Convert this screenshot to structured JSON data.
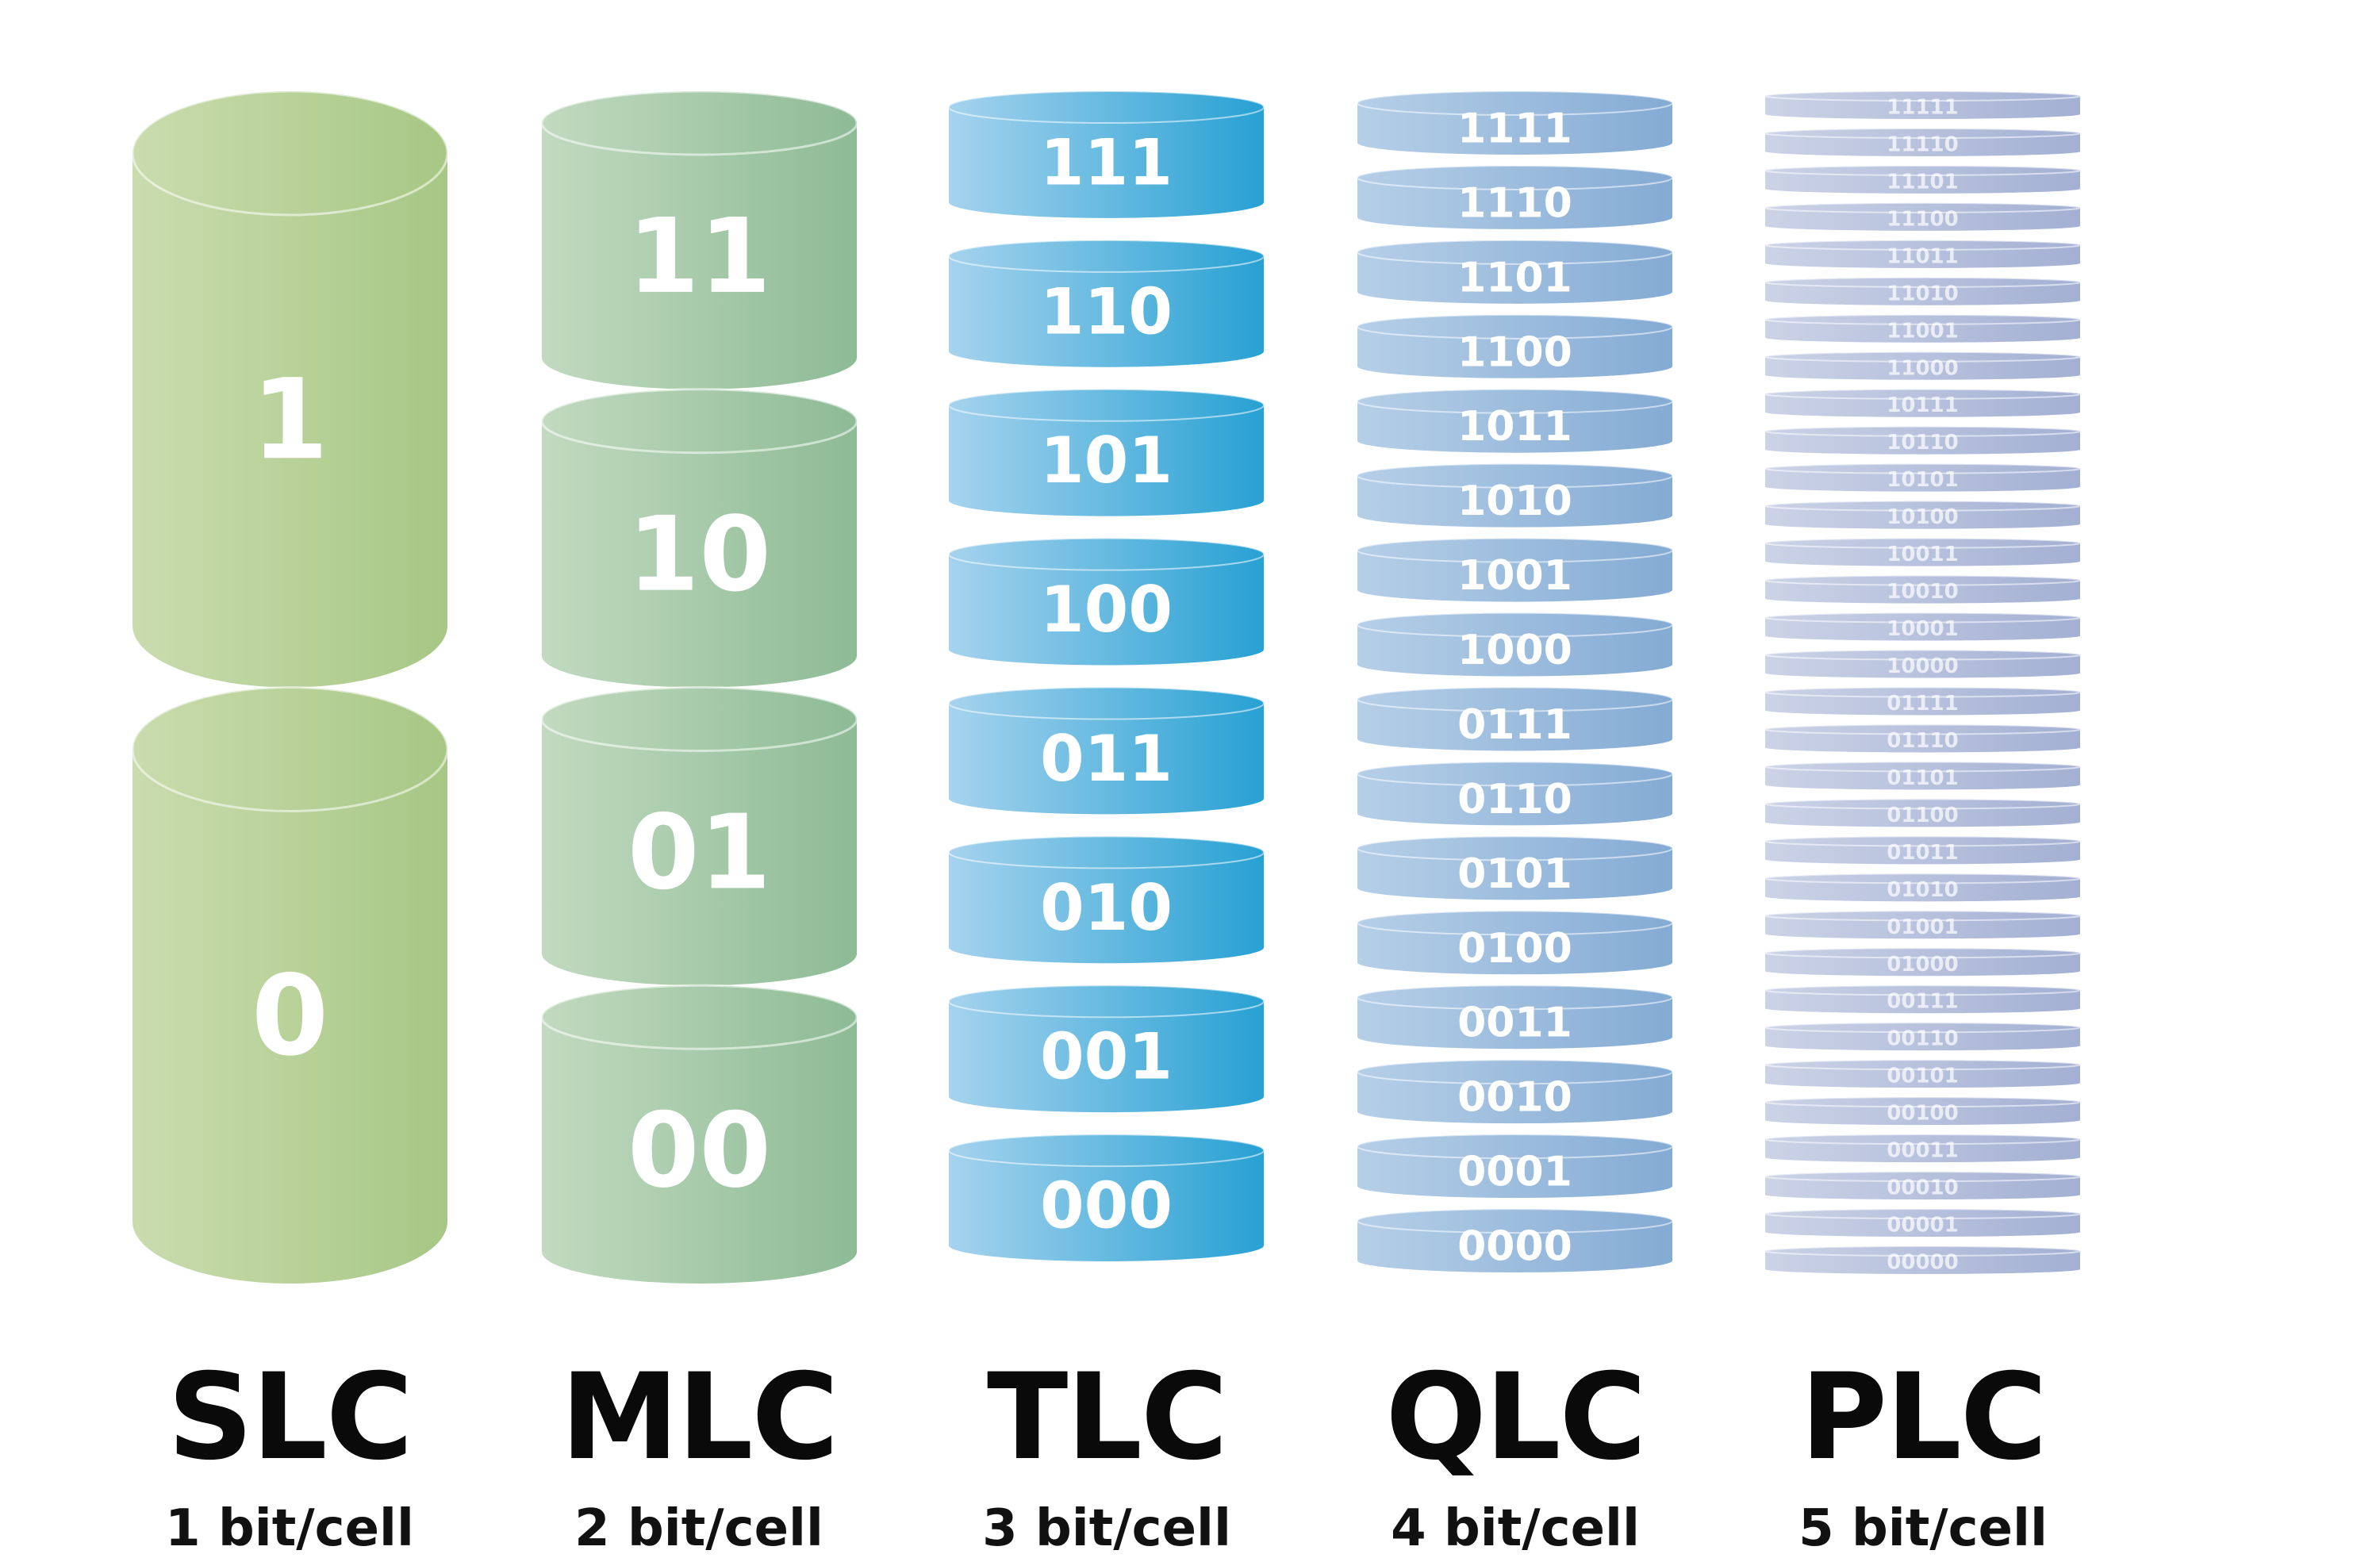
{
  "columns": [
    {
      "name": "SLC",
      "bits": "1 bit/cell",
      "colors": [
        "#cadcae",
        "#a7c785"
      ],
      "levels": [
        "1",
        "0"
      ]
    },
    {
      "name": "MLC",
      "bits": "2 bit/cell",
      "colors": [
        "#c2dac0",
        "#8dbb95"
      ],
      "levels": [
        "11",
        "10",
        "01",
        "00"
      ]
    },
    {
      "name": "TLC",
      "bits": "3 bit/cell",
      "colors": [
        "#a6d3ee",
        "#27a1d3"
      ],
      "levels": [
        "111",
        "110",
        "101",
        "100",
        "011",
        "010",
        "001",
        "000"
      ]
    },
    {
      "name": "QLC",
      "bits": "4 bit/cell",
      "colors": [
        "#b6cfe8",
        "#84abd4"
      ],
      "levels": [
        "1111",
        "1110",
        "1101",
        "1100",
        "1011",
        "1010",
        "1001",
        "1000",
        "0111",
        "0110",
        "0101",
        "0100",
        "0011",
        "0010",
        "0001",
        "0000"
      ]
    },
    {
      "name": "PLC",
      "bits": "5 bit/cell",
      "colors": [
        "#ccd3e7",
        "#a3b0d3"
      ],
      "levels": [
        "11111",
        "11110",
        "11101",
        "11100",
        "11011",
        "11010",
        "11001",
        "11000",
        "10111",
        "10110",
        "10101",
        "10100",
        "10011",
        "10010",
        "10001",
        "10000",
        "01111",
        "01110",
        "01101",
        "01100",
        "01011",
        "01010",
        "01001",
        "01000",
        "00111",
        "00110",
        "00101",
        "00100",
        "00011",
        "00010",
        "00001",
        "00000"
      ]
    }
  ]
}
